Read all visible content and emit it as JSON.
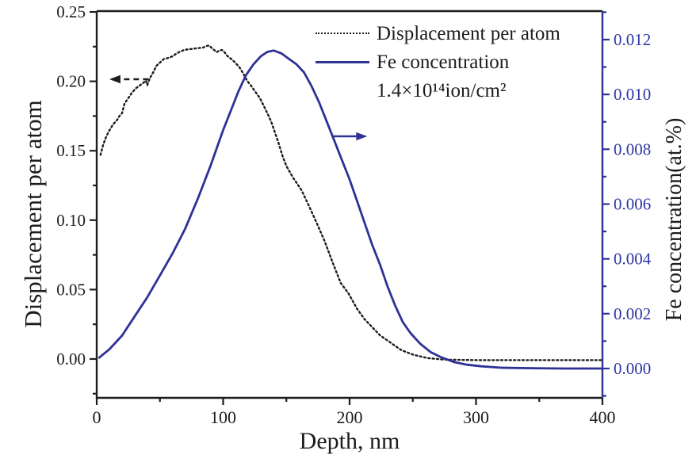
{
  "figure": {
    "background": "#ffffff",
    "frame_color": "#1c1c1c",
    "accent_blue_line": "#2e3195",
    "accent_blue_text": "#2c35a5"
  },
  "legend": {
    "items": [
      {
        "label": "Displacement per atom",
        "line_style": "dotted",
        "color": "#1c1c1c"
      },
      {
        "label": "Fe concentration",
        "line_style": "solid",
        "color": "#2e3195"
      },
      {
        "label": "1.4×10¹⁴ion/cm²",
        "line_style": "none",
        "color": "#1c1c1c"
      }
    ]
  },
  "chart_data": {
    "type": "line",
    "title": "",
    "xlabel": "Depth, nm",
    "ylabel_left": "Displacement per atom",
    "ylabel_right": "Fe concentration(at.%)",
    "grid": false,
    "legend_position": "top-right-inside",
    "x_axis": {
      "min": 0,
      "max": 400,
      "major_ticks": [
        0,
        100,
        200,
        300,
        400
      ],
      "tick_labels": [
        "0",
        "100",
        "200",
        "300",
        "400"
      ],
      "minor_ticks": [
        50,
        150,
        250,
        350
      ],
      "color": "#1c1c1c"
    },
    "y_axis_left": {
      "min": -0.028,
      "max": 0.2506,
      "major_ticks": [
        0.0,
        0.05,
        0.1,
        0.15,
        0.2,
        0.25
      ],
      "tick_labels": [
        "0.00",
        "0.05",
        "0.10",
        "0.15",
        "0.20",
        "0.25"
      ],
      "minor_ticks": [
        -0.025,
        0.025,
        0.075,
        0.125,
        0.175,
        0.225
      ],
      "color": "#1c1c1c"
    },
    "y_axis_right": {
      "min": -0.00107,
      "max": 0.01304,
      "major_ticks": [
        0.0,
        0.002,
        0.004,
        0.006,
        0.008,
        0.01,
        0.012
      ],
      "tick_labels": [
        "0.000",
        "0.002",
        "0.004",
        "0.006",
        "0.008",
        "0.010",
        "0.012"
      ],
      "minor_ticks": [
        -0.001,
        0.001,
        0.003,
        0.005,
        0.007,
        0.009,
        0.011,
        0.013
      ],
      "color": "#2e3195",
      "label_color": "#2c35a5"
    },
    "series": [
      {
        "name": "Displacement per atom",
        "axis": "left",
        "style": "dotted",
        "color": "#1c1c1c",
        "points": [
          [
            3,
            0.147
          ],
          [
            5,
            0.154
          ],
          [
            7,
            0.159
          ],
          [
            9,
            0.163
          ],
          [
            11,
            0.166
          ],
          [
            13,
            0.169
          ],
          [
            16,
            0.172
          ],
          [
            18,
            0.175
          ],
          [
            20,
            0.177
          ],
          [
            22,
            0.184
          ],
          [
            25,
            0.188
          ],
          [
            28,
            0.192
          ],
          [
            31,
            0.195
          ],
          [
            34,
            0.197
          ],
          [
            37,
            0.199
          ],
          [
            39,
            0.2005
          ],
          [
            40,
            0.1972
          ],
          [
            42,
            0.2022
          ],
          [
            45,
            0.207
          ],
          [
            47,
            0.211
          ],
          [
            50,
            0.2135
          ],
          [
            53,
            0.216
          ],
          [
            57,
            0.217
          ],
          [
            60,
            0.218
          ],
          [
            63,
            0.22
          ],
          [
            66,
            0.2215
          ],
          [
            69,
            0.2225
          ],
          [
            72,
            0.223
          ],
          [
            75,
            0.2233
          ],
          [
            78,
            0.2237
          ],
          [
            81,
            0.224
          ],
          [
            84,
            0.2243
          ],
          [
            87,
            0.2255
          ],
          [
            89,
            0.2258
          ],
          [
            91,
            0.224
          ],
          [
            93,
            0.2225
          ],
          [
            95,
            0.221
          ],
          [
            97,
            0.2222
          ],
          [
            99,
            0.2226
          ],
          [
            101,
            0.221
          ],
          [
            103,
            0.2186
          ],
          [
            105,
            0.217
          ],
          [
            107,
            0.2158
          ],
          [
            110,
            0.213
          ],
          [
            113,
            0.21
          ],
          [
            116,
            0.2055
          ],
          [
            119,
            0.2003
          ],
          [
            122,
            0.197
          ],
          [
            125,
            0.193
          ],
          [
            129,
            0.188
          ],
          [
            132,
            0.1826
          ],
          [
            135,
            0.177
          ],
          [
            138,
            0.171
          ],
          [
            141,
            0.163
          ],
          [
            144,
            0.155
          ],
          [
            147,
            0.146
          ],
          [
            150,
            0.139
          ],
          [
            155,
            0.131
          ],
          [
            162,
            0.1216
          ],
          [
            168,
            0.11
          ],
          [
            174,
            0.098
          ],
          [
            180,
            0.0855
          ],
          [
            187,
            0.0685
          ],
          [
            193,
            0.0548
          ],
          [
            199,
            0.0474
          ],
          [
            206,
            0.036
          ],
          [
            212,
            0.0285
          ],
          [
            218,
            0.0228
          ],
          [
            224,
            0.0171
          ],
          [
            233,
            0.0114
          ],
          [
            241,
            0.0063
          ],
          [
            251,
            0.0029
          ],
          [
            262,
            0.0006
          ],
          [
            275,
            -0.0005
          ],
          [
            300,
            -0.0008
          ],
          [
            340,
            -0.0008
          ],
          [
            400,
            -0.0008
          ]
        ]
      },
      {
        "name": "Fe concentration",
        "axis": "right",
        "style": "solid",
        "color": "#2e3195",
        "points": [
          [
            2,
            0.0004
          ],
          [
            10,
            0.0007
          ],
          [
            20,
            0.0012
          ],
          [
            30,
            0.0019
          ],
          [
            40,
            0.0026
          ],
          [
            50,
            0.0034
          ],
          [
            60,
            0.0042
          ],
          [
            70,
            0.0051
          ],
          [
            80,
            0.0062
          ],
          [
            90,
            0.0074
          ],
          [
            100,
            0.0087
          ],
          [
            106,
            0.0094
          ],
          [
            112,
            0.0101
          ],
          [
            118,
            0.0107
          ],
          [
            124,
            0.0111
          ],
          [
            130,
            0.0114
          ],
          [
            135,
            0.01155
          ],
          [
            140,
            0.0116
          ],
          [
            146,
            0.0115
          ],
          [
            152,
            0.0113
          ],
          [
            158,
            0.0111
          ],
          [
            164,
            0.0108
          ],
          [
            170,
            0.0103
          ],
          [
            176,
            0.0097
          ],
          [
            182,
            0.009
          ],
          [
            188,
            0.0083
          ],
          [
            194,
            0.0076
          ],
          [
            200,
            0.0069
          ],
          [
            206,
            0.0061
          ],
          [
            212,
            0.0053
          ],
          [
            218,
            0.0045
          ],
          [
            224,
            0.0038
          ],
          [
            230,
            0.003
          ],
          [
            236,
            0.0023
          ],
          [
            242,
            0.0017
          ],
          [
            248,
            0.0013
          ],
          [
            256,
            0.0009
          ],
          [
            264,
            0.0006
          ],
          [
            273,
            0.0004
          ],
          [
            283,
            0.00023
          ],
          [
            293,
            0.00014
          ],
          [
            304,
            8e-05
          ],
          [
            320,
            3e-05
          ],
          [
            345,
            1e-05
          ],
          [
            370,
            0
          ],
          [
            400,
            0
          ]
        ]
      }
    ],
    "annotations": {
      "arrows": [
        {
          "name": "dpa-axis-arrow",
          "axis": "left",
          "y": 0.2015,
          "x_tail": 41,
          "x_tip": 10,
          "style": "dashed",
          "color": "#1c1c1c"
        },
        {
          "name": "fe-axis-arrow",
          "axis": "right",
          "y": 0.00847,
          "x_tail": 186,
          "x_tip": 214,
          "style": "solid",
          "color": "#2e3195"
        }
      ]
    }
  }
}
